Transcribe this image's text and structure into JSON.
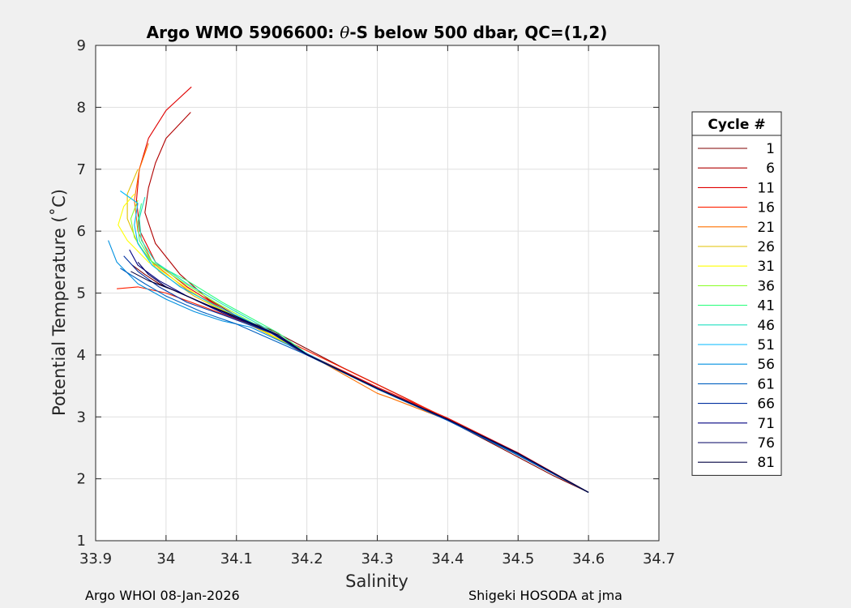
{
  "chart_data": {
    "type": "line",
    "title": "Argo WMO 5906600: θ-S below 500 dbar,  QC=(1,2)",
    "title_parts": {
      "prefix": "Argo WMO 5906600: ",
      "theta": "θ",
      "suffix": "-S below 500 dbar,  QC=(1,2)"
    },
    "xlabel": "Salinity",
    "ylabel": "Potential Temperature (˚C)",
    "xlim": [
      33.9,
      34.7
    ],
    "ylim": [
      1,
      9
    ],
    "x_ticks": [
      "33.9",
      "34",
      "34.1",
      "34.2",
      "34.3",
      "34.4",
      "34.5",
      "34.6",
      "34.7"
    ],
    "y_ticks": [
      "1",
      "2",
      "3",
      "4",
      "5",
      "6",
      "7",
      "8",
      "9"
    ],
    "grid": true,
    "legend_title": "Cycle #",
    "legend_position": "right",
    "series": [
      {
        "name": "1",
        "color": "#7f0000",
        "points": [
          [
            33.952,
            5.45
          ],
          [
            33.97,
            5.3
          ],
          [
            33.99,
            5.15
          ],
          [
            34.03,
            4.95
          ],
          [
            34.08,
            4.7
          ],
          [
            34.15,
            4.4
          ],
          [
            34.25,
            3.8
          ],
          [
            34.35,
            3.25
          ],
          [
            34.45,
            2.65
          ],
          [
            34.55,
            2.05
          ],
          [
            34.6,
            1.78
          ]
        ]
      },
      {
        "name": "6",
        "color": "#b00000",
        "points": [
          [
            34.035,
            7.92
          ],
          [
            34.0,
            7.5
          ],
          [
            33.985,
            7.1
          ],
          [
            33.975,
            6.7
          ],
          [
            33.97,
            6.3
          ],
          [
            33.985,
            5.8
          ],
          [
            34.02,
            5.3
          ],
          [
            34.06,
            4.9
          ],
          [
            34.12,
            4.5
          ],
          [
            34.2,
            4.0
          ],
          [
            34.3,
            3.45
          ],
          [
            34.4,
            2.95
          ],
          [
            34.5,
            2.4
          ],
          [
            34.6,
            1.78
          ]
        ]
      },
      {
        "name": "11",
        "color": "#e00000",
        "points": [
          [
            34.036,
            8.33
          ],
          [
            34.0,
            7.95
          ],
          [
            33.975,
            7.5
          ],
          [
            33.962,
            7.0
          ],
          [
            33.958,
            6.5
          ],
          [
            33.963,
            6.0
          ],
          [
            33.985,
            5.5
          ],
          [
            34.03,
            5.1
          ],
          [
            34.1,
            4.6
          ],
          [
            34.2,
            4.02
          ],
          [
            34.3,
            3.48
          ],
          [
            34.4,
            2.98
          ],
          [
            34.5,
            2.42
          ],
          [
            34.6,
            1.78
          ]
        ]
      },
      {
        "name": "16",
        "color": "#ff2000",
        "points": [
          [
            33.93,
            5.07
          ],
          [
            33.96,
            5.1
          ],
          [
            34.0,
            5.0
          ],
          [
            34.06,
            4.75
          ],
          [
            34.14,
            4.4
          ],
          [
            34.24,
            3.85
          ],
          [
            34.34,
            3.3
          ],
          [
            34.44,
            2.75
          ],
          [
            34.53,
            2.2
          ],
          [
            34.6,
            1.78
          ]
        ]
      },
      {
        "name": "21",
        "color": "#ff7000",
        "points": [
          [
            33.975,
            7.42
          ],
          [
            33.962,
            7.0
          ],
          [
            33.955,
            6.5
          ],
          [
            33.96,
            6.0
          ],
          [
            33.98,
            5.5
          ],
          [
            34.03,
            5.05
          ],
          [
            34.1,
            4.62
          ],
          [
            34.2,
            4.02
          ],
          [
            34.3,
            3.38
          ],
          [
            34.32,
            3.3
          ],
          [
            34.4,
            2.95
          ],
          [
            34.5,
            2.38
          ],
          [
            34.6,
            1.78
          ]
        ]
      },
      {
        "name": "26",
        "color": "#e0c000",
        "points": [
          [
            33.96,
            7.0
          ],
          [
            33.945,
            6.6
          ],
          [
            33.945,
            6.2
          ],
          [
            33.96,
            5.8
          ],
          [
            33.99,
            5.35
          ],
          [
            34.04,
            4.95
          ],
          [
            34.1,
            4.6
          ],
          [
            34.2,
            4.02
          ],
          [
            34.3,
            3.45
          ],
          [
            34.4,
            2.95
          ],
          [
            34.5,
            2.4
          ],
          [
            34.6,
            1.78
          ]
        ]
      },
      {
        "name": "31",
        "color": "#ffff00",
        "points": [
          [
            33.955,
            6.6
          ],
          [
            33.94,
            6.4
          ],
          [
            33.932,
            6.1
          ],
          [
            33.945,
            5.85
          ],
          [
            33.975,
            5.5
          ],
          [
            34.02,
            5.15
          ],
          [
            34.06,
            4.85
          ],
          [
            34.12,
            4.5
          ],
          [
            34.2,
            4.02
          ],
          [
            34.3,
            3.45
          ],
          [
            34.4,
            2.95
          ],
          [
            34.5,
            2.4
          ],
          [
            34.6,
            1.78
          ]
        ]
      },
      {
        "name": "36",
        "color": "#90ff30",
        "points": [
          [
            33.96,
            6.5
          ],
          [
            33.95,
            6.2
          ],
          [
            33.955,
            5.9
          ],
          [
            33.975,
            5.55
          ],
          [
            34.02,
            5.2
          ],
          [
            34.07,
            4.85
          ],
          [
            34.15,
            4.35
          ],
          [
            34.2,
            4.0
          ],
          [
            34.3,
            3.45
          ],
          [
            34.4,
            2.95
          ],
          [
            34.5,
            2.4
          ],
          [
            34.6,
            1.78
          ]
        ]
      },
      {
        "name": "41",
        "color": "#30ff80",
        "points": [
          [
            33.965,
            6.45
          ],
          [
            33.96,
            6.15
          ],
          [
            33.962,
            5.85
          ],
          [
            33.98,
            5.5
          ],
          [
            34.03,
            5.2
          ],
          [
            34.08,
            4.85
          ],
          [
            34.16,
            4.35
          ],
          [
            34.2,
            4.02
          ],
          [
            34.3,
            3.45
          ],
          [
            34.4,
            2.95
          ],
          [
            34.5,
            2.4
          ],
          [
            34.6,
            1.78
          ]
        ]
      },
      {
        "name": "46",
        "color": "#20e0c0",
        "points": [
          [
            33.97,
            6.55
          ],
          [
            33.962,
            6.2
          ],
          [
            33.965,
            5.85
          ],
          [
            33.985,
            5.5
          ],
          [
            34.03,
            5.15
          ],
          [
            34.08,
            4.82
          ],
          [
            34.15,
            4.38
          ],
          [
            34.2,
            4.02
          ],
          [
            34.3,
            3.45
          ],
          [
            34.4,
            2.95
          ],
          [
            34.5,
            2.4
          ],
          [
            34.6,
            1.78
          ]
        ]
      },
      {
        "name": "51",
        "color": "#00b8ff",
        "points": [
          [
            33.935,
            6.65
          ],
          [
            33.96,
            6.45
          ],
          [
            33.955,
            6.1
          ],
          [
            33.96,
            5.8
          ],
          [
            33.98,
            5.45
          ],
          [
            34.02,
            5.1
          ],
          [
            34.07,
            4.8
          ],
          [
            34.14,
            4.42
          ],
          [
            34.2,
            4.02
          ],
          [
            34.3,
            3.45
          ],
          [
            34.4,
            2.95
          ],
          [
            34.5,
            2.4
          ],
          [
            34.6,
            1.78
          ]
        ]
      },
      {
        "name": "56",
        "color": "#0090e0",
        "points": [
          [
            33.918,
            5.85
          ],
          [
            33.93,
            5.5
          ],
          [
            33.96,
            5.15
          ],
          [
            34.0,
            4.9
          ],
          [
            34.04,
            4.7
          ],
          [
            34.08,
            4.55
          ],
          [
            34.12,
            4.45
          ],
          [
            34.2,
            4.02
          ],
          [
            34.3,
            3.45
          ],
          [
            34.4,
            2.95
          ],
          [
            34.5,
            2.38
          ],
          [
            34.6,
            1.78
          ]
        ]
      },
      {
        "name": "61",
        "color": "#0060c0",
        "points": [
          [
            33.935,
            5.4
          ],
          [
            33.97,
            5.15
          ],
          [
            34.0,
            4.95
          ],
          [
            34.05,
            4.7
          ],
          [
            34.1,
            4.5
          ],
          [
            34.2,
            4.0
          ],
          [
            34.3,
            3.45
          ],
          [
            34.4,
            2.94
          ],
          [
            34.5,
            2.38
          ],
          [
            34.6,
            1.78
          ]
        ]
      },
      {
        "name": "66",
        "color": "#0030a0",
        "points": [
          [
            33.94,
            5.6
          ],
          [
            33.96,
            5.35
          ],
          [
            33.99,
            5.1
          ],
          [
            34.03,
            4.85
          ],
          [
            34.08,
            4.65
          ],
          [
            34.15,
            4.35
          ],
          [
            34.2,
            4.0
          ],
          [
            34.3,
            3.46
          ],
          [
            34.4,
            2.95
          ],
          [
            34.5,
            2.4
          ],
          [
            34.6,
            1.78
          ]
        ]
      },
      {
        "name": "71",
        "color": "#000080",
        "points": [
          [
            33.948,
            5.7
          ],
          [
            33.96,
            5.45
          ],
          [
            33.99,
            5.2
          ],
          [
            34.03,
            4.95
          ],
          [
            34.08,
            4.68
          ],
          [
            34.15,
            4.36
          ],
          [
            34.2,
            4.01
          ],
          [
            34.3,
            3.46
          ],
          [
            34.4,
            2.96
          ],
          [
            34.5,
            2.41
          ],
          [
            34.6,
            1.78
          ]
        ]
      },
      {
        "name": "76",
        "color": "#000060",
        "points": [
          [
            33.96,
            5.5
          ],
          [
            33.975,
            5.3
          ],
          [
            34.0,
            5.1
          ],
          [
            34.04,
            4.9
          ],
          [
            34.09,
            4.65
          ],
          [
            34.15,
            4.37
          ],
          [
            34.2,
            4.01
          ],
          [
            34.3,
            3.46
          ],
          [
            34.4,
            2.96
          ],
          [
            34.5,
            2.41
          ],
          [
            34.6,
            1.78
          ]
        ]
      },
      {
        "name": "81",
        "color": "#000040",
        "points": [
          [
            33.95,
            5.35
          ],
          [
            33.975,
            5.2
          ],
          [
            34.01,
            5.05
          ],
          [
            34.05,
            4.85
          ],
          [
            34.1,
            4.62
          ],
          [
            34.16,
            4.32
          ],
          [
            34.2,
            4.01
          ],
          [
            34.3,
            3.46
          ],
          [
            34.4,
            2.96
          ],
          [
            34.5,
            2.41
          ],
          [
            34.6,
            1.78
          ]
        ]
      }
    ]
  },
  "footer": {
    "left": "Argo WHOI 08-Jan-2026",
    "right": "Shigeki HOSODA at jma"
  }
}
